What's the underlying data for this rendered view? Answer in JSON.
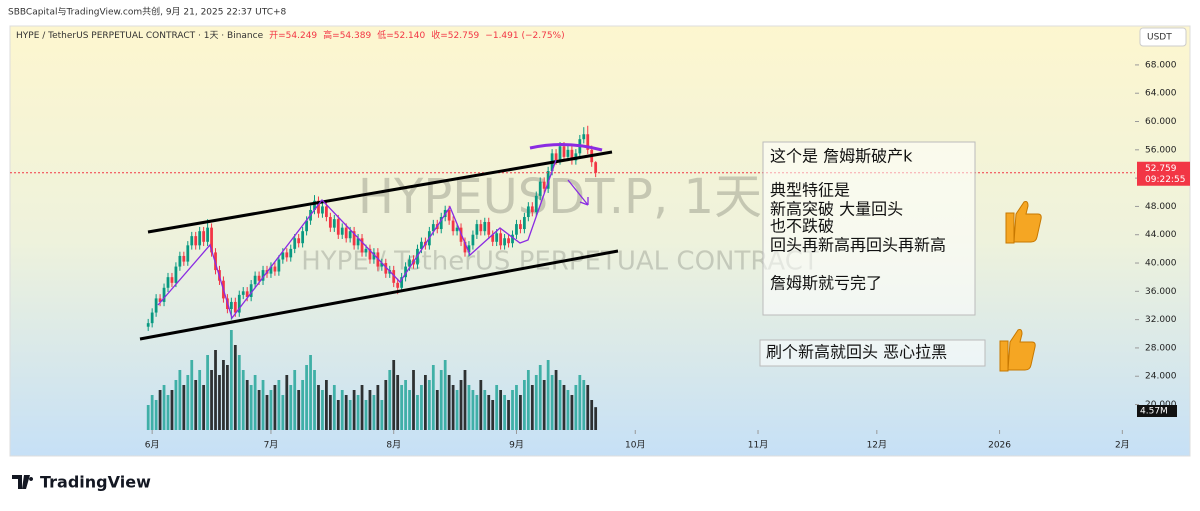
{
  "top_bar": {
    "text": "SBBCapital与TradingView.com共创, 9月 21, 2025 22:37 UTC+8"
  },
  "footer": {
    "brand": "TradingView"
  },
  "chart_data": {
    "type": "candlestick",
    "symbol": "HYPE / TetherUS PERPETUAL CONTRACT · 1天 · Binance",
    "ohlc_legend": {
      "open": "开=54.249",
      "high": "高=54.389",
      "low": "低=52.140",
      "close": "收=52.759",
      "change": "−1.491 (−2.75%)"
    },
    "watermark": "HYPEUSDT.P, 1天",
    "watermark_sub": "HYPE / TetherUS PERPETUAL CONTRACT",
    "currency": "USDT",
    "price_time": "09:22:55",
    "volume_label": "4.57M",
    "up_color": "#089981",
    "down_color": "#f23645",
    "volume_up_color": "#26a69a",
    "volume_down_color": "#111111",
    "xlim": [
      -35.9,
      248.2
    ],
    "xticks": [
      {
        "value": 0,
        "label": "6月"
      },
      {
        "value": 30,
        "label": "7月"
      },
      {
        "value": 61,
        "label": "8月"
      },
      {
        "value": 92,
        "label": "9月"
      },
      {
        "value": 122,
        "label": "10月"
      },
      {
        "value": 153,
        "label": "11月"
      },
      {
        "value": 183,
        "label": "12月"
      },
      {
        "value": 214,
        "label": "2026"
      },
      {
        "value": 245,
        "label": "2月"
      }
    ],
    "ylim": [
      16.4,
      73.5
    ],
    "yticks": [
      {
        "value": 20,
        "label": "20.000"
      },
      {
        "value": 24,
        "label": "24.000"
      },
      {
        "value": 28,
        "label": "28.000"
      },
      {
        "value": 32,
        "label": "32.000"
      },
      {
        "value": 36,
        "label": "36.000"
      },
      {
        "value": 40,
        "label": "40.000"
      },
      {
        "value": 44,
        "label": "44.000"
      },
      {
        "value": 48,
        "label": "48.000"
      },
      {
        "value": 52,
        "label": "52.000"
      },
      {
        "value": 56,
        "label": "56.000"
      },
      {
        "value": 60,
        "label": "60.000"
      },
      {
        "value": 64,
        "label": "64.000"
      },
      {
        "value": 68,
        "label": "68.000"
      }
    ],
    "x": [
      -1,
      0,
      1,
      2,
      3,
      4,
      5,
      6,
      7,
      8,
      9,
      10,
      11,
      12,
      13,
      14,
      15,
      16,
      17,
      18,
      19,
      20,
      21,
      22,
      23,
      24,
      25,
      26,
      27,
      28,
      29,
      30,
      31,
      32,
      33,
      34,
      35,
      36,
      37,
      38,
      39,
      40,
      41,
      42,
      43,
      44,
      45,
      46,
      47,
      48,
      49,
      50,
      51,
      52,
      53,
      54,
      55,
      56,
      57,
      58,
      59,
      60,
      61,
      62,
      63,
      64,
      65,
      66,
      67,
      68,
      69,
      70,
      71,
      72,
      73,
      74,
      75,
      76,
      77,
      78,
      79,
      80,
      81,
      82,
      83,
      84,
      85,
      86,
      87,
      88,
      89,
      90,
      91,
      92,
      93,
      94,
      95,
      96,
      97,
      98,
      99,
      100,
      101,
      102,
      103,
      104,
      105,
      106,
      107,
      108,
      109,
      110,
      111,
      112
    ],
    "open": [
      31.0,
      31.5,
      33.0,
      35.0,
      34.5,
      36.5,
      38.0,
      37.2,
      39.5,
      41.0,
      40.2,
      42.5,
      43.8,
      42.5,
      44.5,
      43.0,
      45.0,
      41.5,
      39.0,
      37.5,
      35.0,
      33.5,
      34.5,
      33.0,
      35.5,
      36.0,
      35.2,
      37.0,
      38.2,
      37.5,
      39.0,
      38.5,
      39.5,
      38.8,
      40.5,
      41.5,
      40.8,
      42.0,
      43.5,
      42.8,
      44.5,
      46.0,
      47.5,
      48.8,
      47.0,
      48.0,
      46.5,
      45.0,
      46.2,
      44.0,
      45.0,
      43.5,
      44.5,
      42.5,
      43.5,
      41.5,
      42.0,
      40.5,
      41.5,
      39.5,
      40.0,
      38.5,
      39.0,
      37.2,
      36.5,
      38.0,
      39.5,
      40.5,
      39.8,
      42.0,
      43.0,
      42.5,
      44.5,
      45.5,
      44.8,
      46.5,
      47.5,
      46.0,
      44.5,
      45.0,
      43.0,
      41.5,
      42.5,
      44.0,
      45.5,
      44.5,
      45.8,
      44.0,
      43.0,
      44.2,
      42.5,
      43.5,
      42.8,
      44.0,
      45.5,
      44.8,
      46.5,
      48.0,
      47.2,
      49.5,
      51.5,
      50.5,
      53.0,
      55.5,
      54.5,
      56.5,
      55.0,
      56.0,
      54.5,
      55.5,
      57.5,
      58.2,
      56.0,
      54.249
    ],
    "high": [
      32.1,
      33.6,
      35.6,
      35.6,
      37.1,
      38.6,
      38.6,
      40.1,
      41.6,
      41.6,
      43.1,
      44.4,
      44.4,
      45.1,
      45.1,
      46.2,
      45.6,
      42.1,
      39.6,
      38.1,
      35.6,
      35.1,
      35.1,
      36.1,
      36.6,
      36.6,
      37.6,
      38.8,
      38.8,
      39.6,
      39.6,
      40.1,
      40.1,
      41.1,
      42.1,
      42.1,
      42.6,
      44.1,
      44.1,
      45.1,
      46.6,
      48.1,
      49.6,
      49.4,
      48.6,
      48.6,
      47.1,
      46.8,
      46.8,
      45.6,
      45.6,
      45.1,
      45.1,
      44.1,
      44.1,
      42.6,
      42.6,
      42.1,
      42.1,
      40.6,
      40.6,
      39.6,
      39.6,
      37.8,
      38.6,
      40.1,
      41.1,
      41.1,
      42.6,
      43.6,
      43.6,
      45.1,
      46.1,
      46.1,
      47.1,
      48.1,
      48.1,
      46.6,
      45.6,
      45.6,
      43.6,
      43.1,
      44.6,
      46.1,
      46.1,
      46.4,
      46.4,
      44.6,
      44.8,
      44.8,
      44.1,
      44.1,
      44.6,
      46.1,
      46.1,
      47.1,
      48.6,
      48.6,
      50.1,
      52.1,
      52.1,
      53.6,
      56.1,
      56.1,
      57.1,
      57.1,
      56.6,
      56.6,
      56.1,
      58.1,
      59.2,
      59.4,
      56.6,
      54.389
    ],
    "low": [
      30.4,
      30.9,
      32.4,
      33.9,
      33.9,
      35.9,
      36.6,
      36.6,
      38.9,
      39.6,
      39.6,
      41.9,
      41.9,
      41.9,
      42.4,
      42.4,
      40.9,
      38.4,
      36.9,
      34.4,
      32.9,
      32.0,
      32.4,
      32.4,
      34.9,
      34.6,
      34.6,
      36.4,
      36.9,
      36.9,
      37.9,
      37.9,
      38.2,
      38.2,
      39.9,
      40.2,
      40.2,
      41.4,
      42.2,
      42.2,
      43.9,
      45.4,
      46.9,
      46.4,
      46.4,
      45.9,
      44.4,
      44.4,
      43.4,
      43.4,
      42.9,
      42.9,
      41.9,
      41.9,
      40.9,
      40.9,
      39.9,
      39.9,
      38.9,
      38.9,
      37.9,
      37.9,
      36.6,
      35.6,
      35.9,
      37.4,
      38.9,
      39.2,
      39.2,
      41.4,
      41.9,
      41.9,
      43.9,
      44.2,
      44.2,
      45.9,
      45.4,
      43.9,
      43.9,
      42.4,
      40.9,
      40.9,
      41.9,
      43.4,
      43.9,
      43.9,
      43.4,
      42.4,
      42.4,
      41.9,
      41.9,
      42.2,
      42.2,
      43.4,
      44.2,
      44.2,
      45.9,
      46.6,
      46.6,
      48.9,
      49.9,
      49.9,
      52.4,
      53.9,
      53.9,
      54.4,
      54.4,
      53.9,
      53.9,
      54.9,
      56.9,
      55.4,
      53.6,
      52.14
    ],
    "close": [
      31.5,
      33.0,
      35.0,
      34.5,
      36.5,
      38.0,
      37.2,
      39.5,
      41.0,
      40.2,
      42.5,
      43.8,
      42.5,
      44.5,
      43.0,
      45.0,
      41.5,
      39.0,
      37.5,
      35.0,
      33.5,
      34.5,
      33.0,
      35.5,
      36.0,
      35.2,
      37.0,
      38.2,
      37.5,
      39.0,
      38.5,
      39.5,
      38.8,
      40.5,
      41.5,
      40.8,
      42.0,
      43.5,
      42.8,
      44.5,
      46.0,
      47.5,
      48.8,
      47.0,
      48.0,
      46.5,
      45.0,
      46.2,
      44.0,
      45.0,
      43.5,
      44.5,
      42.5,
      43.5,
      41.5,
      42.0,
      40.5,
      41.5,
      39.5,
      40.0,
      38.5,
      39.0,
      37.2,
      36.5,
      38.0,
      39.5,
      40.5,
      39.8,
      42.0,
      43.0,
      42.5,
      44.5,
      45.5,
      44.8,
      46.5,
      47.5,
      46.0,
      44.5,
      45.0,
      43.0,
      41.5,
      42.5,
      44.0,
      45.5,
      44.5,
      45.8,
      44.0,
      43.0,
      44.2,
      42.5,
      43.5,
      42.8,
      44.0,
      45.5,
      44.8,
      46.5,
      48.0,
      47.2,
      49.5,
      51.5,
      50.5,
      53.0,
      55.5,
      54.5,
      56.5,
      55.0,
      56.0,
      54.5,
      55.5,
      57.5,
      58.2,
      56.0,
      54.249,
      52.759
    ],
    "volume": [
      5,
      7,
      6,
      8,
      9,
      7,
      8,
      10,
      12,
      9,
      11,
      14,
      10,
      12,
      9,
      15,
      12,
      16,
      11,
      14,
      13,
      20,
      17,
      15,
      12,
      10,
      9,
      11,
      8,
      10,
      7,
      8,
      9,
      10,
      7,
      11,
      9,
      12,
      8,
      10,
      13,
      15,
      12,
      9,
      8,
      10,
      7,
      9,
      6,
      8,
      7,
      6,
      8,
      7,
      9,
      6,
      8,
      7,
      9,
      6,
      10,
      12,
      14,
      11,
      9,
      10,
      8,
      12,
      7,
      9,
      11,
      10,
      13,
      8,
      12,
      14,
      11,
      9,
      8,
      10,
      12,
      9,
      8,
      7,
      10,
      8,
      7,
      6,
      9,
      8,
      7,
      6,
      8,
      9,
      7,
      10,
      12,
      9,
      11,
      13,
      10,
      14,
      11,
      12,
      10,
      9,
      8,
      7,
      9,
      11,
      10,
      9,
      6,
      4.57
    ]
  },
  "annotations": {
    "box_lines": [
      "这个是 詹姆斯破产k",
      "典型特征是",
      "新高突破 大量回头",
      "也不跌破",
      "回头再新高再回头再新高",
      "詹姆斯就亏完了"
    ],
    "note": "刷个新高就回头  恶心拉黑"
  }
}
